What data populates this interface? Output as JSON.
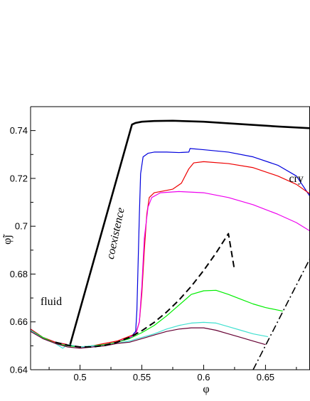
{
  "chart_data": {
    "type": "line",
    "title": "",
    "xlabel": "φ",
    "ylabel": "φ̃j",
    "xlim": [
      0.46,
      0.686
    ],
    "ylim": [
      0.64,
      0.75
    ],
    "x_ticks": [
      0.5,
      0.55,
      0.6,
      0.65
    ],
    "x_tick_labels": [
      "0.5",
      "0.55",
      "0.6",
      "0.65"
    ],
    "y_ticks": [
      0.64,
      0.66,
      0.68,
      0.7,
      0.72,
      0.74
    ],
    "y_tick_labels": [
      "0.64",
      "0.66",
      "0.68",
      "0.7",
      "0.72",
      "0.74"
    ],
    "grid": false,
    "legend": "none",
    "annotations": [
      {
        "text": "fluid",
        "x": 0.468,
        "y": 0.667,
        "rotation": 0,
        "italic": false
      },
      {
        "text": "coexistence",
        "x": 0.527,
        "y": 0.686,
        "rotation": -78,
        "italic": true
      },
      {
        "text": "cry",
        "x": 0.669,
        "y": 0.7185,
        "rotation": 0,
        "italic": false
      }
    ],
    "series": [
      {
        "color": "#000000",
        "width": 2.6,
        "dash": "solid",
        "points": [
          [
            0.492,
            0.6505
          ],
          [
            0.542,
            0.7425
          ],
          [
            0.545,
            0.7432
          ],
          [
            0.55,
            0.7437
          ],
          [
            0.56,
            0.744
          ],
          [
            0.575,
            0.7441
          ],
          [
            0.6,
            0.7437
          ],
          [
            0.63,
            0.7427
          ],
          [
            0.66,
            0.7417
          ],
          [
            0.686,
            0.741
          ]
        ]
      },
      {
        "color": "#0000dd",
        "width": 1.2,
        "dash": "solid",
        "points": [
          [
            0.46,
            0.657
          ],
          [
            0.47,
            0.6535
          ],
          [
            0.48,
            0.6515
          ],
          [
            0.49,
            0.6505
          ],
          [
            0.5,
            0.6495
          ],
          [
            0.51,
            0.6495
          ],
          [
            0.52,
            0.6505
          ],
          [
            0.53,
            0.6515
          ],
          [
            0.54,
            0.653
          ],
          [
            0.545,
            0.656
          ],
          [
            0.546,
            0.665
          ],
          [
            0.547,
            0.685
          ],
          [
            0.548,
            0.705
          ],
          [
            0.549,
            0.722
          ],
          [
            0.551,
            0.729
          ],
          [
            0.555,
            0.7305
          ],
          [
            0.56,
            0.731
          ],
          [
            0.57,
            0.731
          ],
          [
            0.58,
            0.7308
          ],
          [
            0.588,
            0.731
          ],
          [
            0.589,
            0.7325
          ],
          [
            0.6,
            0.732
          ],
          [
            0.62,
            0.731
          ],
          [
            0.64,
            0.729
          ],
          [
            0.66,
            0.7255
          ],
          [
            0.675,
            0.721
          ],
          [
            0.686,
            0.7125
          ]
        ]
      },
      {
        "color": "#ee0000",
        "width": 1.2,
        "dash": "solid",
        "points": [
          [
            0.46,
            0.657
          ],
          [
            0.47,
            0.6535
          ],
          [
            0.48,
            0.6515
          ],
          [
            0.49,
            0.6505
          ],
          [
            0.5,
            0.6495
          ],
          [
            0.51,
            0.65
          ],
          [
            0.52,
            0.651
          ],
          [
            0.53,
            0.652
          ],
          [
            0.545,
            0.655
          ],
          [
            0.548,
            0.66
          ],
          [
            0.55,
            0.672
          ],
          [
            0.552,
            0.69
          ],
          [
            0.554,
            0.705
          ],
          [
            0.556,
            0.712
          ],
          [
            0.56,
            0.714
          ],
          [
            0.565,
            0.7145
          ],
          [
            0.575,
            0.7155
          ],
          [
            0.582,
            0.718
          ],
          [
            0.588,
            0.724
          ],
          [
            0.592,
            0.7265
          ],
          [
            0.6,
            0.727
          ],
          [
            0.62,
            0.7262
          ],
          [
            0.64,
            0.7245
          ],
          [
            0.66,
            0.721
          ],
          [
            0.675,
            0.7175
          ],
          [
            0.686,
            0.7135
          ]
        ]
      },
      {
        "color": "#ee00ee",
        "width": 1.2,
        "dash": "solid",
        "points": [
          [
            0.46,
            0.6565
          ],
          [
            0.47,
            0.653
          ],
          [
            0.48,
            0.651
          ],
          [
            0.49,
            0.65
          ],
          [
            0.5,
            0.6495
          ],
          [
            0.51,
            0.65
          ],
          [
            0.52,
            0.6505
          ],
          [
            0.53,
            0.6515
          ],
          [
            0.545,
            0.6545
          ],
          [
            0.548,
            0.66
          ],
          [
            0.55,
            0.675
          ],
          [
            0.552,
            0.695
          ],
          [
            0.555,
            0.708
          ],
          [
            0.558,
            0.712
          ],
          [
            0.565,
            0.714
          ],
          [
            0.58,
            0.7145
          ],
          [
            0.6,
            0.714
          ],
          [
            0.62,
            0.712
          ],
          [
            0.64,
            0.709
          ],
          [
            0.66,
            0.705
          ],
          [
            0.675,
            0.7015
          ],
          [
            0.686,
            0.698
          ]
        ]
      },
      {
        "color": "#00ee00",
        "width": 1.2,
        "dash": "solid",
        "points": [
          [
            0.46,
            0.6565
          ],
          [
            0.47,
            0.6535
          ],
          [
            0.48,
            0.651
          ],
          [
            0.49,
            0.65
          ],
          [
            0.5,
            0.6495
          ],
          [
            0.51,
            0.65
          ],
          [
            0.52,
            0.6505
          ],
          [
            0.53,
            0.6515
          ],
          [
            0.54,
            0.653
          ],
          [
            0.55,
            0.6555
          ],
          [
            0.56,
            0.6585
          ],
          [
            0.57,
            0.6625
          ],
          [
            0.58,
            0.667
          ],
          [
            0.59,
            0.6715
          ],
          [
            0.6,
            0.673
          ],
          [
            0.61,
            0.6732
          ],
          [
            0.62,
            0.6715
          ],
          [
            0.63,
            0.6695
          ],
          [
            0.64,
            0.6675
          ],
          [
            0.65,
            0.666
          ],
          [
            0.664,
            0.6645
          ]
        ]
      },
      {
        "color": "#40e0d0",
        "width": 1.2,
        "dash": "solid",
        "points": [
          [
            0.46,
            0.6565
          ],
          [
            0.47,
            0.653
          ],
          [
            0.48,
            0.651
          ],
          [
            0.486,
            0.649
          ],
          [
            0.49,
            0.6505
          ],
          [
            0.5,
            0.6495
          ],
          [
            0.51,
            0.65
          ],
          [
            0.52,
            0.65
          ],
          [
            0.53,
            0.651
          ],
          [
            0.54,
            0.652
          ],
          [
            0.55,
            0.6535
          ],
          [
            0.56,
            0.655
          ],
          [
            0.57,
            0.657
          ],
          [
            0.58,
            0.6585
          ],
          [
            0.59,
            0.6595
          ],
          [
            0.6,
            0.6598
          ],
          [
            0.61,
            0.6595
          ],
          [
            0.62,
            0.658
          ],
          [
            0.63,
            0.6565
          ],
          [
            0.64,
            0.655
          ],
          [
            0.652,
            0.6538
          ]
        ]
      },
      {
        "color": "#660033",
        "width": 1.2,
        "dash": "solid",
        "points": [
          [
            0.46,
            0.656
          ],
          [
            0.47,
            0.653
          ],
          [
            0.48,
            0.651
          ],
          [
            0.49,
            0.6495
          ],
          [
            0.5,
            0.649
          ],
          [
            0.51,
            0.6495
          ],
          [
            0.52,
            0.65
          ],
          [
            0.53,
            0.651
          ],
          [
            0.54,
            0.6515
          ],
          [
            0.55,
            0.653
          ],
          [
            0.56,
            0.6545
          ],
          [
            0.57,
            0.656
          ],
          [
            0.58,
            0.657
          ],
          [
            0.59,
            0.6575
          ],
          [
            0.6,
            0.6575
          ],
          [
            0.61,
            0.6565
          ],
          [
            0.62,
            0.655
          ],
          [
            0.63,
            0.6535
          ],
          [
            0.64,
            0.652
          ],
          [
            0.65,
            0.6505
          ]
        ]
      },
      {
        "color": "#000000",
        "width": 2.0,
        "dash": "dashed",
        "points": [
          [
            0.48,
            0.6515
          ],
          [
            0.49,
            0.6502
          ],
          [
            0.5,
            0.6495
          ],
          [
            0.51,
            0.6495
          ],
          [
            0.52,
            0.6502
          ],
          [
            0.53,
            0.6515
          ],
          [
            0.54,
            0.6535
          ],
          [
            0.55,
            0.6563
          ],
          [
            0.56,
            0.6598
          ],
          [
            0.57,
            0.6641
          ],
          [
            0.58,
            0.6691
          ],
          [
            0.59,
            0.6749
          ],
          [
            0.6,
            0.6815
          ],
          [
            0.61,
            0.6888
          ],
          [
            0.62,
            0.6969
          ],
          [
            0.625,
            0.6815
          ]
        ]
      },
      {
        "color": "#000000",
        "width": 1.6,
        "dash": "dashdot",
        "points": [
          [
            0.64,
            0.64
          ],
          [
            0.686,
            0.6865
          ]
        ]
      }
    ]
  }
}
